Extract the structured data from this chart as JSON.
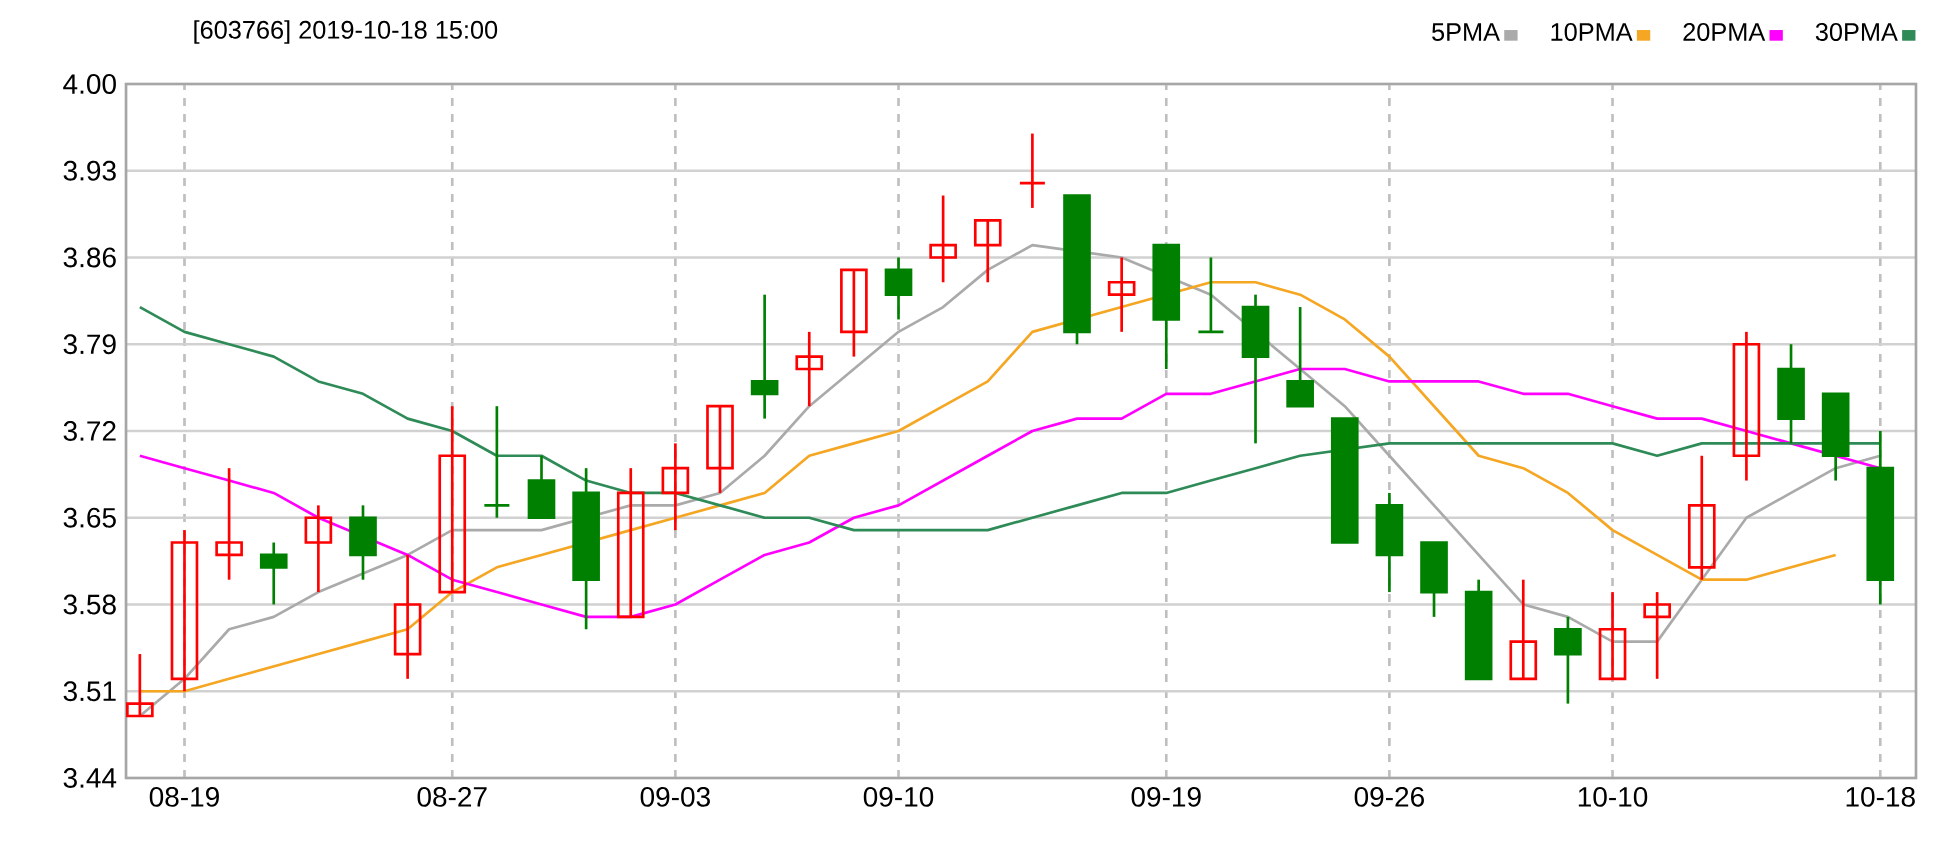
{
  "chart_data": {
    "type": "candlestick",
    "title": "[603766] 2019-10-18 15:00",
    "categories": [
      null,
      "08-19",
      null,
      null,
      null,
      null,
      null,
      "08-27",
      null,
      null,
      null,
      null,
      "09-03",
      null,
      null,
      null,
      null,
      "09-10",
      null,
      null,
      null,
      null,
      null,
      "09-19",
      null,
      null,
      null,
      null,
      "09-26",
      null,
      null,
      null,
      null,
      "10-10",
      null,
      null,
      null,
      null,
      null,
      "10-18"
    ],
    "ohlc": [
      [
        3.49,
        3.54,
        3.49,
        3.5
      ],
      [
        3.52,
        3.64,
        3.51,
        3.63
      ],
      [
        3.62,
        3.69,
        3.6,
        3.63
      ],
      [
        3.62,
        3.63,
        3.58,
        3.61
      ],
      [
        3.63,
        3.66,
        3.59,
        3.65
      ],
      [
        3.65,
        3.66,
        3.6,
        3.62
      ],
      [
        3.54,
        3.62,
        3.52,
        3.58
      ],
      [
        3.59,
        3.74,
        3.59,
        3.7
      ],
      [
        3.66,
        3.74,
        3.65,
        3.66
      ],
      [
        3.68,
        3.7,
        3.65,
        3.65
      ],
      [
        3.67,
        3.69,
        3.56,
        3.6
      ],
      [
        3.57,
        3.69,
        3.57,
        3.67
      ],
      [
        3.67,
        3.71,
        3.64,
        3.69
      ],
      [
        3.69,
        3.74,
        3.67,
        3.74
      ],
      [
        3.76,
        3.83,
        3.73,
        3.75
      ],
      [
        3.77,
        3.8,
        3.74,
        3.78
      ],
      [
        3.8,
        3.85,
        3.78,
        3.85
      ],
      [
        3.85,
        3.86,
        3.81,
        3.83
      ],
      [
        3.86,
        3.91,
        3.84,
        3.87
      ],
      [
        3.87,
        3.89,
        3.84,
        3.89
      ],
      [
        3.92,
        3.96,
        3.9,
        3.92
      ],
      [
        3.91,
        3.91,
        3.79,
        3.8
      ],
      [
        3.83,
        3.86,
        3.8,
        3.84
      ],
      [
        3.87,
        3.87,
        3.77,
        3.81
      ],
      [
        3.8,
        3.86,
        3.8,
        3.8
      ],
      [
        3.82,
        3.83,
        3.71,
        3.78
      ],
      [
        3.76,
        3.82,
        3.74,
        3.74
      ],
      [
        3.73,
        3.73,
        3.63,
        3.63
      ],
      [
        3.66,
        3.67,
        3.59,
        3.62
      ],
      [
        3.63,
        3.63,
        3.57,
        3.59
      ],
      [
        3.59,
        3.6,
        3.52,
        3.52
      ],
      [
        3.52,
        3.6,
        3.52,
        3.55
      ],
      [
        3.56,
        3.57,
        3.5,
        3.54
      ],
      [
        3.52,
        3.59,
        3.52,
        3.56
      ],
      [
        3.57,
        3.59,
        3.52,
        3.58
      ],
      [
        3.61,
        3.7,
        3.6,
        3.66
      ],
      [
        3.7,
        3.8,
        3.68,
        3.79
      ],
      [
        3.77,
        3.79,
        3.71,
        3.73
      ],
      [
        3.75,
        3.75,
        3.68,
        3.7
      ],
      [
        3.69,
        3.72,
        3.58,
        3.6
      ]
    ],
    "colors": [
      "#ff0000",
      "#ff0000",
      "#ff0000",
      "#008000",
      "#ff0000",
      "#008000",
      "#ff0000",
      "#ff0000",
      "#008000",
      "#008000",
      "#008000",
      "#ff0000",
      "#ff0000",
      "#ff0000",
      "#008000",
      "#ff0000",
      "#ff0000",
      "#008000",
      "#ff0000",
      "#ff0000",
      "#ff0000",
      "#008000",
      "#ff0000",
      "#008000",
      "#008000",
      "#008000",
      "#008000",
      "#008000",
      "#008000",
      "#008000",
      "#008000",
      "#ff0000",
      "#008000",
      "#ff0000",
      "#ff0000",
      "#ff0000",
      "#ff0000",
      "#008000",
      "#008000",
      "#008000"
    ],
    "series": [
      {
        "name": "5PMA",
        "type": "line",
        "color": "#aaaaaa",
        "values": [
          3.49,
          3.52,
          3.56,
          3.57,
          3.59,
          null,
          3.62,
          3.64,
          3.64,
          3.64,
          null,
          3.66,
          3.66,
          3.67,
          3.7,
          3.74,
          3.77,
          3.8,
          3.82,
          3.85,
          3.87,
          null,
          3.86,
          null,
          3.83,
          null,
          3.77,
          3.74,
          3.7,
          3.66,
          3.62,
          3.58,
          3.57,
          3.55,
          3.55,
          3.6,
          3.65,
          3.67,
          3.69,
          3.7
        ]
      },
      {
        "name": "10PMA",
        "type": "line",
        "color": "#f5a623",
        "values": [
          3.51,
          3.51,
          3.52,
          3.53,
          3.54,
          3.55,
          3.56,
          3.59,
          3.61,
          3.62,
          null,
          3.64,
          3.65,
          3.66,
          3.67,
          3.7,
          3.71,
          3.72,
          3.74,
          3.76,
          3.8,
          null,
          3.82,
          null,
          3.84,
          3.84,
          3.83,
          3.81,
          3.78,
          3.74,
          3.7,
          3.69,
          3.67,
          3.64,
          3.62,
          3.6,
          3.6,
          3.61,
          3.62,
          null
        ]
      },
      {
        "name": "20PMA",
        "type": "line",
        "color": "#ff00ff",
        "values": [
          3.7,
          3.69,
          3.68,
          3.67,
          3.65,
          null,
          3.62,
          3.6,
          3.59,
          3.58,
          3.57,
          3.57,
          3.58,
          3.6,
          3.62,
          3.63,
          3.65,
          3.66,
          3.68,
          3.7,
          3.72,
          3.73,
          3.73,
          3.75,
          3.75,
          3.76,
          3.77,
          3.77,
          3.76,
          3.76,
          3.76,
          3.75,
          3.75,
          3.74,
          3.73,
          3.73,
          3.72,
          3.71,
          null,
          3.69
        ]
      },
      {
        "name": "30PMA",
        "type": "line",
        "color": "#2e8b57",
        "values": [
          3.82,
          3.8,
          3.79,
          3.78,
          3.76,
          3.75,
          3.73,
          3.72,
          3.7,
          3.7,
          3.68,
          3.67,
          3.67,
          3.66,
          3.65,
          3.65,
          3.64,
          3.64,
          3.64,
          3.64,
          3.65,
          3.66,
          3.67,
          3.67,
          3.68,
          3.69,
          3.7,
          null,
          3.71,
          3.71,
          3.71,
          3.71,
          3.71,
          3.71,
          3.7,
          3.71,
          3.71,
          3.71,
          null,
          3.71
        ]
      }
    ],
    "ylim": [
      3.44,
      4.0
    ],
    "yticks": [
      3.44,
      3.51,
      3.58,
      3.65,
      3.72,
      3.79,
      3.86,
      3.93,
      {
        "value": 4.0,
        "label": "4.00"
      }
    ],
    "grid": true,
    "legend": "top"
  }
}
